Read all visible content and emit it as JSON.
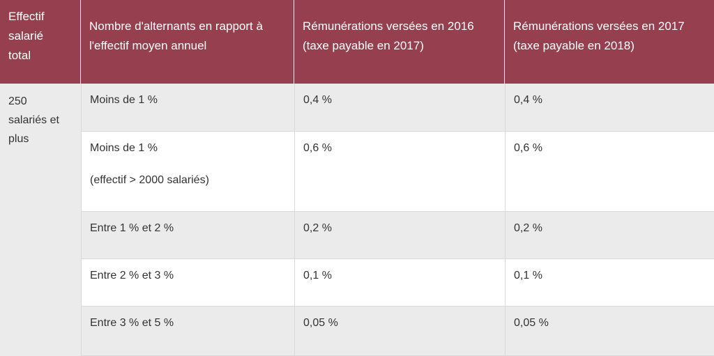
{
  "header": {
    "col0": [
      "Effectif",
      "salarié",
      "total"
    ],
    "col1": [
      "Nombre d'alternants en rapport à",
      "l'effectif moyen annuel"
    ],
    "col2": [
      "Rémunérations versées en 2016",
      "(taxe payable en 2017)"
    ],
    "col3": [
      "Rémunérations versées en 2017",
      "(taxe payable en 2018)"
    ]
  },
  "group": [
    "250",
    "salariés et",
    "plus"
  ],
  "rows": [
    {
      "ratio": [
        "Moins de 1 %"
      ],
      "rate_2016": "0,4 %",
      "rate_2017": "0,4 %"
    },
    {
      "ratio": [
        "Moins de 1 %",
        "(effectif > 2000  salariés)"
      ],
      "rate_2016": "0,6 %",
      "rate_2017": "0,6 %"
    },
    {
      "ratio": [
        "Entre 1 % et 2 %"
      ],
      "rate_2016": "0,2 %",
      "rate_2017": "0,2 %"
    },
    {
      "ratio": [
        "Entre 2 % et 3 %"
      ],
      "rate_2016": "0,1 %",
      "rate_2017": "0,1 %"
    },
    {
      "ratio": [
        "Entre 3 % et 5 %"
      ],
      "rate_2016": "0,05 %",
      "rate_2017": "0,05 %"
    }
  ],
  "colors": {
    "header_bg": "#96404f",
    "stripe": "#ebebeb",
    "text": "#333333"
  }
}
